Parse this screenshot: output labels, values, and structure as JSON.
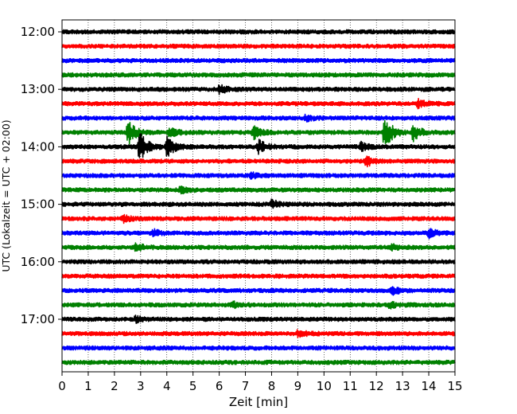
{
  "chart_data": {
    "type": "line",
    "title": "",
    "xlabel": "Zeit  [min]",
    "ylabel": "UTC (Lokalzeit = UTC + 02:00)",
    "xlim": [
      0,
      15
    ],
    "x_ticks": [
      0,
      1,
      2,
      3,
      4,
      5,
      6,
      7,
      8,
      9,
      10,
      11,
      12,
      13,
      14,
      15
    ],
    "y_tick_labels": [
      "12:00",
      "13:00",
      "14:00",
      "15:00",
      "16:00",
      "17:00"
    ],
    "grid": "vertical dotted",
    "trace_interval_minutes": 15,
    "start_time": "12:00",
    "trace_colors": [
      "#000000",
      "#ff0000",
      "#0000ff",
      "#008000"
    ],
    "traces": [
      {
        "start": "12:00",
        "color": "#000000",
        "events": []
      },
      {
        "start": "12:15",
        "color": "#ff0000",
        "events": []
      },
      {
        "start": "12:30",
        "color": "#0000ff",
        "events": []
      },
      {
        "start": "12:45",
        "color": "#008000",
        "events": []
      },
      {
        "start": "13:00",
        "color": "#000000",
        "events": [
          {
            "t": 6.0,
            "amp": 0.3
          }
        ]
      },
      {
        "start": "13:15",
        "color": "#ff0000",
        "events": [
          {
            "t": 13.6,
            "amp": 0.3
          }
        ]
      },
      {
        "start": "13:30",
        "color": "#0000ff",
        "events": [
          {
            "t": 9.3,
            "amp": 0.2
          }
        ]
      },
      {
        "start": "13:45",
        "color": "#008000",
        "events": [
          {
            "t": 2.5,
            "amp": 1.0
          },
          {
            "t": 4.1,
            "amp": 0.4
          },
          {
            "t": 7.3,
            "amp": 0.5
          },
          {
            "t": 12.3,
            "amp": 1.4
          },
          {
            "t": 13.4,
            "amp": 0.6
          }
        ]
      },
      {
        "start": "14:00",
        "color": "#000000",
        "events": [
          {
            "t": 2.95,
            "amp": 1.2
          },
          {
            "t": 4.0,
            "amp": 0.8
          },
          {
            "t": 7.5,
            "amp": 0.5
          },
          {
            "t": 11.4,
            "amp": 0.3
          }
        ]
      },
      {
        "start": "14:15",
        "color": "#ff0000",
        "events": [
          {
            "t": 11.6,
            "amp": 0.4
          }
        ]
      },
      {
        "start": "14:30",
        "color": "#0000ff",
        "events": [
          {
            "t": 7.2,
            "amp": 0.2
          }
        ]
      },
      {
        "start": "14:45",
        "color": "#008000",
        "events": [
          {
            "t": 4.5,
            "amp": 0.25
          }
        ]
      },
      {
        "start": "15:00",
        "color": "#000000",
        "events": [
          {
            "t": 8.0,
            "amp": 0.3
          }
        ]
      },
      {
        "start": "15:15",
        "color": "#ff0000",
        "events": [
          {
            "t": 2.3,
            "amp": 0.25
          }
        ]
      },
      {
        "start": "15:30",
        "color": "#0000ff",
        "events": [
          {
            "t": 3.5,
            "amp": 0.25
          },
          {
            "t": 14.0,
            "amp": 0.3
          }
        ]
      },
      {
        "start": "15:45",
        "color": "#008000",
        "events": [
          {
            "t": 2.8,
            "amp": 0.3
          },
          {
            "t": 12.6,
            "amp": 0.2
          }
        ]
      },
      {
        "start": "16:00",
        "color": "#000000",
        "events": []
      },
      {
        "start": "16:15",
        "color": "#ff0000",
        "events": []
      },
      {
        "start": "16:30",
        "color": "#0000ff",
        "events": [
          {
            "t": 12.6,
            "amp": 0.3
          }
        ]
      },
      {
        "start": "16:45",
        "color": "#008000",
        "events": [
          {
            "t": 6.5,
            "amp": 0.2
          },
          {
            "t": 12.5,
            "amp": 0.2
          }
        ]
      },
      {
        "start": "17:00",
        "color": "#000000",
        "events": [
          {
            "t": 2.8,
            "amp": 0.2
          }
        ]
      },
      {
        "start": "17:15",
        "color": "#ff0000",
        "events": [
          {
            "t": 9.0,
            "amp": 0.25
          }
        ]
      },
      {
        "start": "17:30",
        "color": "#0000ff",
        "events": []
      },
      {
        "start": "17:45",
        "color": "#008000",
        "events": []
      }
    ]
  }
}
